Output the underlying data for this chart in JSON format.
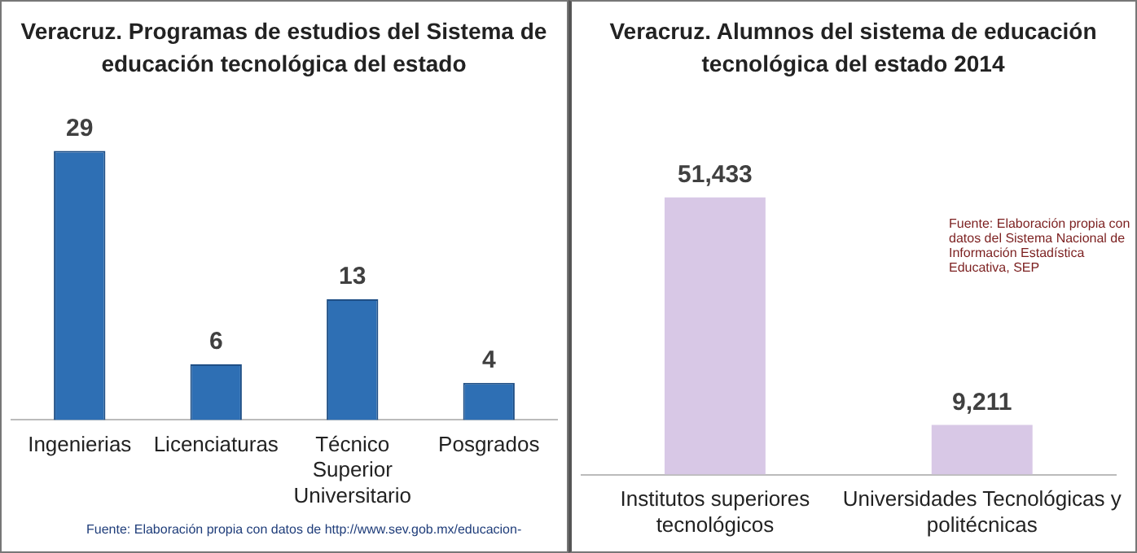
{
  "chart_data": [
    {
      "type": "bar",
      "title": "Veracruz. Programas de estudios del Sistema de educación tecnológica del estado",
      "categories": [
        "Ingenierias",
        "Licenciaturas",
        "Técnico Superior Universitario",
        "Posgrados"
      ],
      "values": [
        29,
        6,
        13,
        4
      ],
      "color": "#2e6fb4",
      "data_labels": true,
      "grid": false,
      "legend": false,
      "annotations": [
        "Fuente: Elaboración propia con datos de http://www.sev.gob.mx/educacion-"
      ]
    },
    {
      "type": "bar",
      "title": "Veracruz. Alumnos del sistema de educación tecnológica del estado 2014",
      "categories": [
        "Institutos superiores tecnológicos",
        "Universidades Tecnológicas y politécnicas"
      ],
      "values": [
        51433,
        9211
      ],
      "value_labels": [
        "51,433",
        "9,211"
      ],
      "color": "#d8c8e6",
      "grid": false,
      "legend": false,
      "annotations": [
        "Fuente: Elaboración propia con datos del Sistema Nacional de Información Estadística Educativa, SEP"
      ]
    }
  ]
}
